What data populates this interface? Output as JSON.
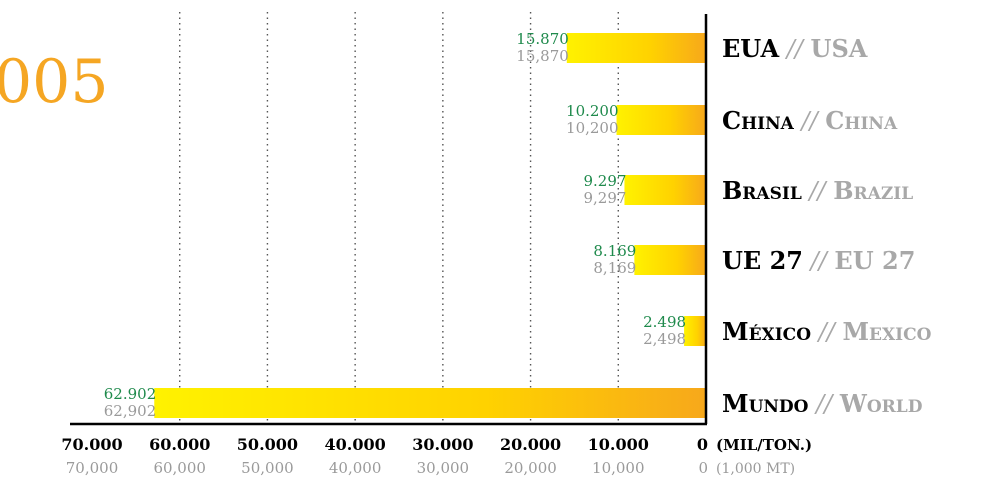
{
  "year_label": "005",
  "chart_data": {
    "type": "bar",
    "orientation": "horizontal-reversed",
    "xlim": [
      0,
      70000
    ],
    "grid": true,
    "categories_pt": [
      "EUA",
      "China",
      "Brasil",
      "UE 27",
      "México",
      "Mundo"
    ],
    "categories_en": [
      "USA",
      "China",
      "Brazil",
      "EU 27",
      "Mexico",
      "World"
    ],
    "values": [
      15870,
      10200,
      9297,
      8169,
      2498,
      62902
    ],
    "labels_pt": [
      "15.870",
      "10.200",
      "9.297",
      "8.169",
      "2.498",
      "62.902"
    ],
    "labels_en": [
      "15,870",
      "10,200",
      "9,297",
      "8,169",
      "2,498",
      "62,902"
    ],
    "ticks": [
      70000,
      60000,
      50000,
      40000,
      30000,
      20000,
      10000,
      0
    ],
    "tick_labels_pt": [
      "70.000",
      "60.000",
      "50.000",
      "40.000",
      "30.000",
      "20.000",
      "10.000",
      "0"
    ],
    "tick_labels_en": [
      "70,000",
      "60,000",
      "50,000",
      "40,000",
      "30,000",
      "20,000",
      "10,000",
      "0"
    ],
    "unit_pt": "(MIL/TON.)",
    "unit_en": "(1,000 MT)",
    "separator": "//",
    "colors": {
      "bar_start": "#fff200",
      "bar_end": "#f7a81b",
      "pt_value": "#1f8a4c",
      "en_value": "#9a9a9a",
      "year": "#f5a623",
      "axis": "#000000",
      "grid": "#555555"
    }
  }
}
